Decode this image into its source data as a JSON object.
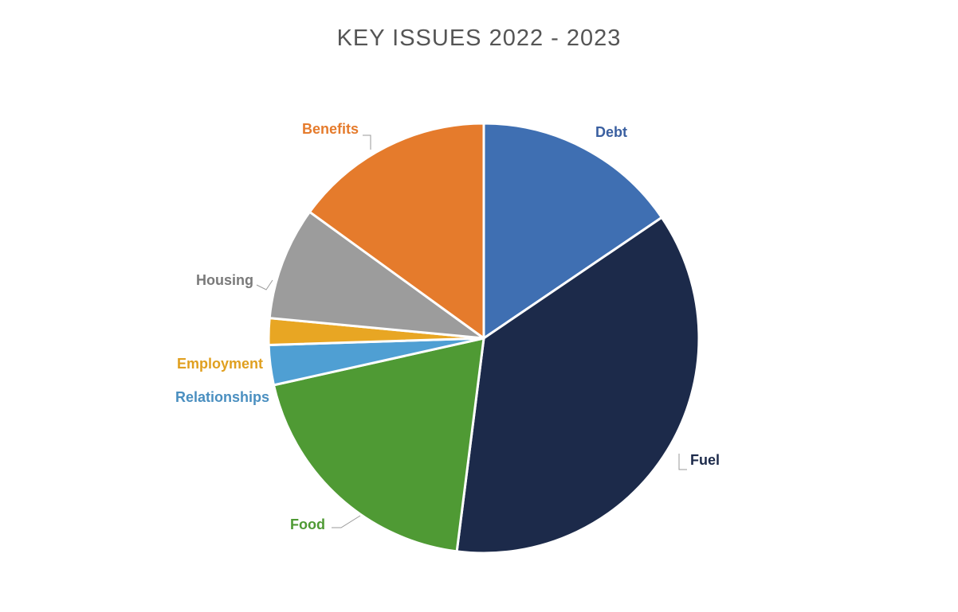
{
  "chart_data": {
    "type": "pie",
    "title": "KEY ISSUES 2022 - 2023",
    "categories": [
      "Debt",
      "Fuel",
      "Food",
      "Relationships",
      "Employment",
      "Housing",
      "Benefits"
    ],
    "values": [
      15.5,
      36.5,
      19.5,
      3.0,
      2.0,
      8.5,
      15.0
    ],
    "colors": [
      "#3f6fb2",
      "#1c2a4a",
      "#4f9a34",
      "#4f9fd3",
      "#e8a623",
      "#9c9c9c",
      "#e57b2c"
    ],
    "label_colors": [
      "#3a5fa0",
      "#1c2a4a",
      "#4f9a34",
      "#4a8fc0",
      "#e0a020",
      "#7a7a7a",
      "#e57b2c"
    ],
    "start_angle_deg": 0,
    "direction": "clockwise",
    "legend": "none (labels on slices)"
  }
}
